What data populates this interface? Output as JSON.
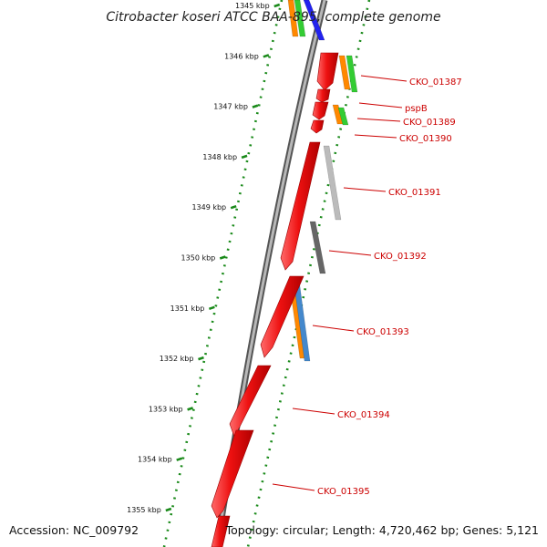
{
  "title": "Citrobacter koseri ATCC BAA-895, complete genome",
  "footer": {
    "accession": "Accession: NC_009792",
    "topology": "Topology: circular; Length: 4,720,462 bp; Genes: 5,121"
  },
  "scale_labels": [
    "1345 kbp",
    "1346 kbp",
    "1347 kbp",
    "1348 kbp",
    "1349 kbp",
    "1350 kbp",
    "1351 kbp",
    "1352 kbp",
    "1353 kbp",
    "1354 kbp",
    "1355 kbp"
  ],
  "gene_labels": [
    "CKO_01387",
    "pspB",
    "CKO_01389",
    "CKO_01390",
    "CKO_01391",
    "CKO_01392",
    "CKO_01393",
    "CKO_01394",
    "CKO_01395"
  ],
  "colors": {
    "gene": "#ee1111",
    "gene_label": "#cc0000",
    "backbone": "#777777",
    "scale_tick": "#1a8a1a",
    "feature_orange": "#ff8800",
    "feature_green": "#33cc33",
    "feature_blue": "#2222ee",
    "feature_steelblue": "#4488cc",
    "feature_lightgray": "#bbbbbb",
    "feature_darkgray": "#666666"
  }
}
